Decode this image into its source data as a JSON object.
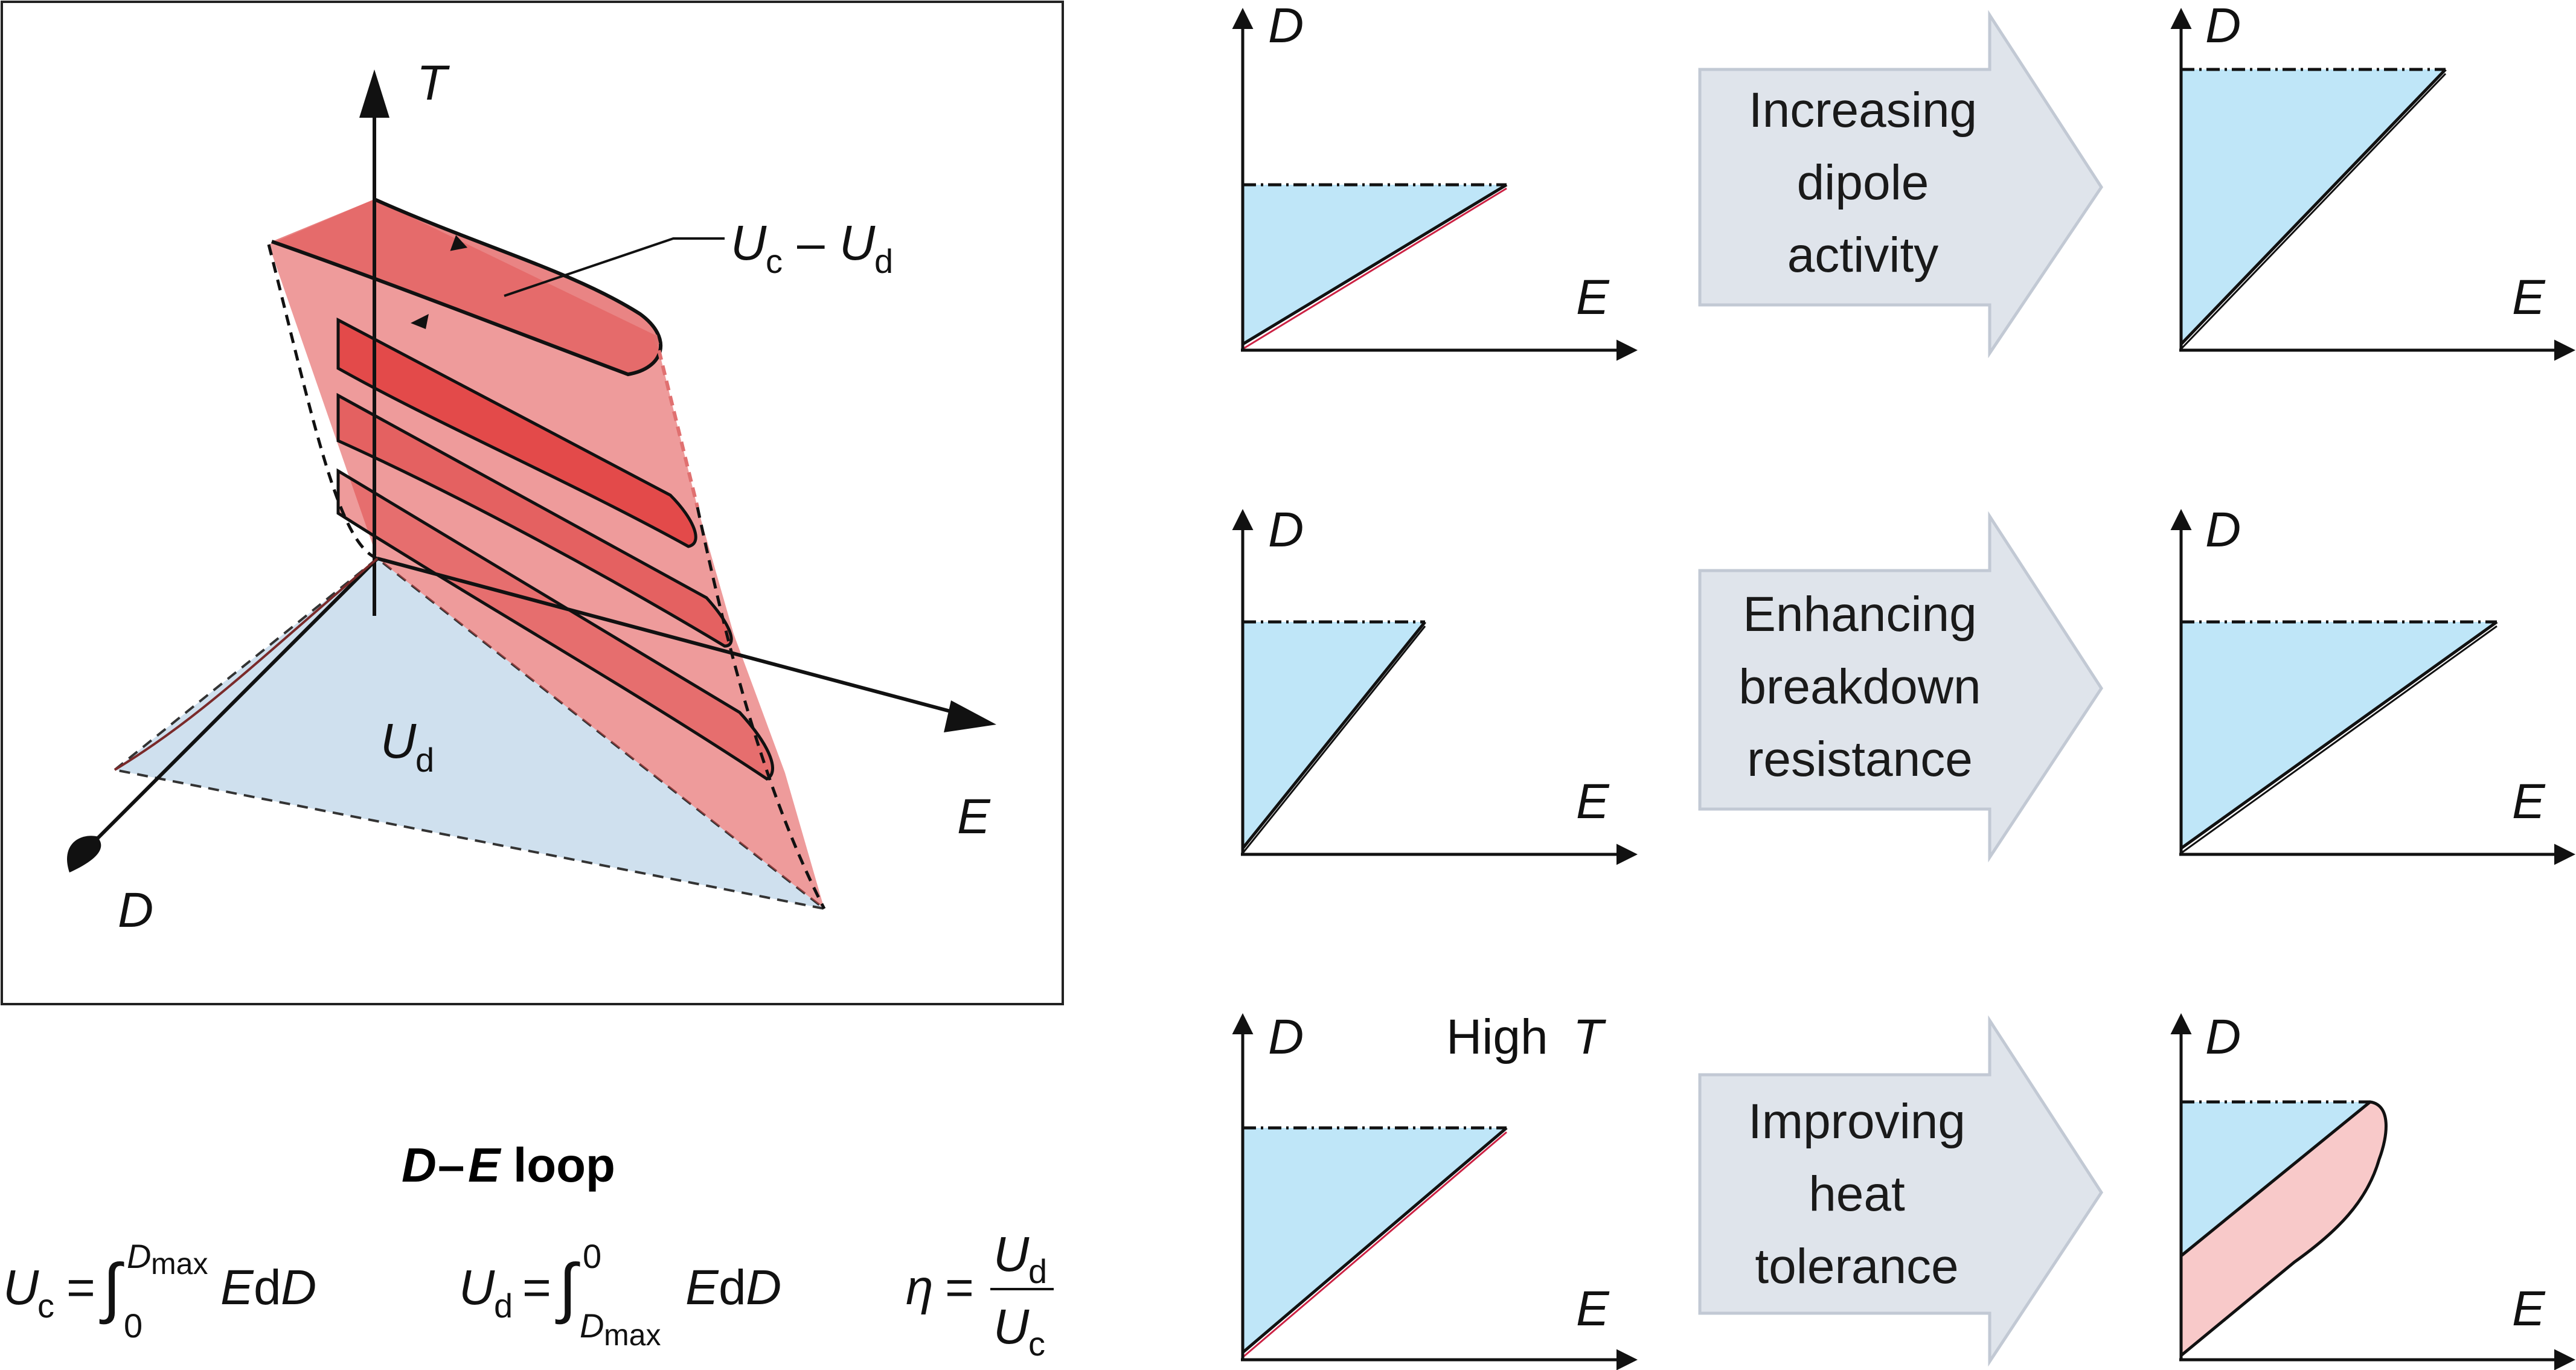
{
  "left_panel": {
    "axis_t": "T",
    "axis_e": "E",
    "axis_d": "D",
    "loss_label_u": "U",
    "loss_label_c": "c",
    "loss_label_dash": "–",
    "loss_label_u2": "U",
    "loss_label_d": "d",
    "ud_label_u": "U",
    "ud_label_d": "d"
  },
  "loop_section": {
    "title_d": "D",
    "title_dash": "–",
    "title_e": "E",
    "title_rest": "loop",
    "uc": {
      "u": "U",
      "sub": "c",
      "eq": "=",
      "integral": "∫",
      "upper": "D",
      "upper_sub": "max",
      "lower": "0",
      "integrand_e": "E",
      "integrand_d": "d",
      "integrand_d2": "D"
    },
    "ud": {
      "u": "U",
      "sub": "d",
      "eq": "=",
      "integral": "∫",
      "upper": "0",
      "lower": "D",
      "lower_sub": "max",
      "integrand_e": "E",
      "integrand_d": "d",
      "integrand_d2": "D"
    },
    "eta": {
      "symbol": "η",
      "eq": "=",
      "num_u": "U",
      "num_sub": "d",
      "den_u": "U",
      "den_sub": "c"
    }
  },
  "rows": [
    {
      "arrow_lines": [
        "Increasing",
        "dipole",
        "activity"
      ],
      "left_note": ""
    },
    {
      "arrow_lines": [
        "Enhancing",
        "breakdown",
        "resistance"
      ],
      "left_note": ""
    },
    {
      "arrow_lines": [
        "Improving",
        "heat",
        "tolerance"
      ],
      "left_note": "High",
      "left_note_t": "T"
    }
  ],
  "axis_labels": {
    "d": "D",
    "e": "E"
  },
  "colors": {
    "blue_fill": "#bfe6f8",
    "pink_fill": "#f8c9c9",
    "red_surface": "#e04848",
    "light_blue_plane": "#cfe0ee",
    "arrow_fill": "#dfe4eb",
    "arrow_stroke": "#c2c9d4"
  }
}
